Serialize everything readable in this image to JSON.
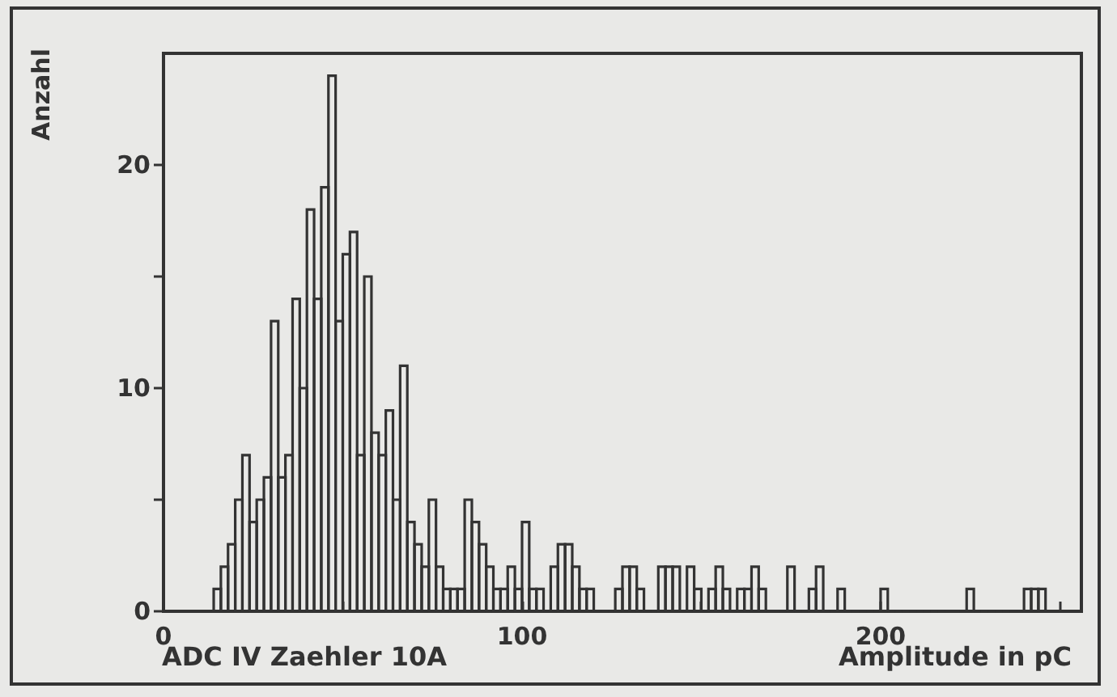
{
  "chart_data": {
    "type": "histogram",
    "ylabel": "Anzahl",
    "xlabel": "Amplitude in pC",
    "annotations": [
      "ADC IV Zaehler 10A"
    ],
    "bins": [
      14,
      16,
      18,
      20,
      22,
      24,
      26,
      28,
      30,
      32,
      34,
      36,
      38,
      40,
      42,
      44,
      46,
      48,
      50,
      52,
      54,
      56,
      58,
      60,
      62,
      64,
      66,
      68,
      70,
      72,
      74,
      76,
      78,
      80,
      82,
      84,
      86,
      88,
      90,
      92,
      94,
      96,
      98,
      100,
      102,
      104,
      106,
      108,
      110,
      112,
      114,
      116,
      118,
      120,
      122,
      124,
      126,
      128,
      130,
      132,
      134,
      136,
      138,
      140,
      142,
      144,
      146,
      148,
      150,
      152,
      154,
      156,
      158,
      160,
      162,
      164,
      166,
      168,
      170,
      172,
      174,
      176,
      178,
      180,
      182,
      184,
      186,
      188,
      190,
      192,
      194,
      196,
      198,
      200,
      202,
      204,
      206,
      208,
      210,
      212,
      214,
      216,
      218,
      220,
      222,
      224,
      226,
      228,
      230,
      232,
      234,
      236,
      238,
      240,
      242,
      244,
      246
    ],
    "values": [
      1,
      2,
      3,
      5,
      7,
      4,
      5,
      6,
      13,
      6,
      7,
      14,
      10,
      18,
      14,
      19,
      24,
      13,
      16,
      17,
      7,
      15,
      8,
      7,
      9,
      5,
      11,
      4,
      3,
      2,
      5,
      2,
      1,
      1,
      1,
      5,
      4,
      3,
      2,
      1,
      1,
      2,
      1,
      4,
      1,
      1,
      0,
      2,
      3,
      3,
      2,
      1,
      1,
      0,
      0,
      0,
      1,
      2,
      2,
      1,
      0,
      0,
      2,
      2,
      2,
      0,
      2,
      1,
      0,
      1,
      2,
      1,
      0,
      1,
      1,
      2,
      1,
      0,
      0,
      0,
      2,
      0,
      0,
      1,
      2,
      0,
      0,
      1,
      0,
      0,
      0,
      0,
      0,
      1,
      0,
      0,
      0,
      0,
      0,
      0,
      0,
      0,
      0,
      0,
      0,
      1,
      0,
      0,
      0,
      0,
      0,
      0,
      0,
      1,
      1,
      1
    ],
    "color": "#333333",
    "xlim": [
      0,
      256
    ],
    "xticks": [
      0,
      {
        "value": 50,
        "label": null
      },
      100,
      {
        "value": 150,
        "label": null
      },
      200,
      {
        "value": 250,
        "label": null
      }
    ],
    "ylim": [
      0,
      25
    ],
    "yticks": [
      0,
      {
        "value": 5,
        "label": null
      },
      10,
      {
        "value": 15,
        "label": null
      },
      20
    ]
  }
}
